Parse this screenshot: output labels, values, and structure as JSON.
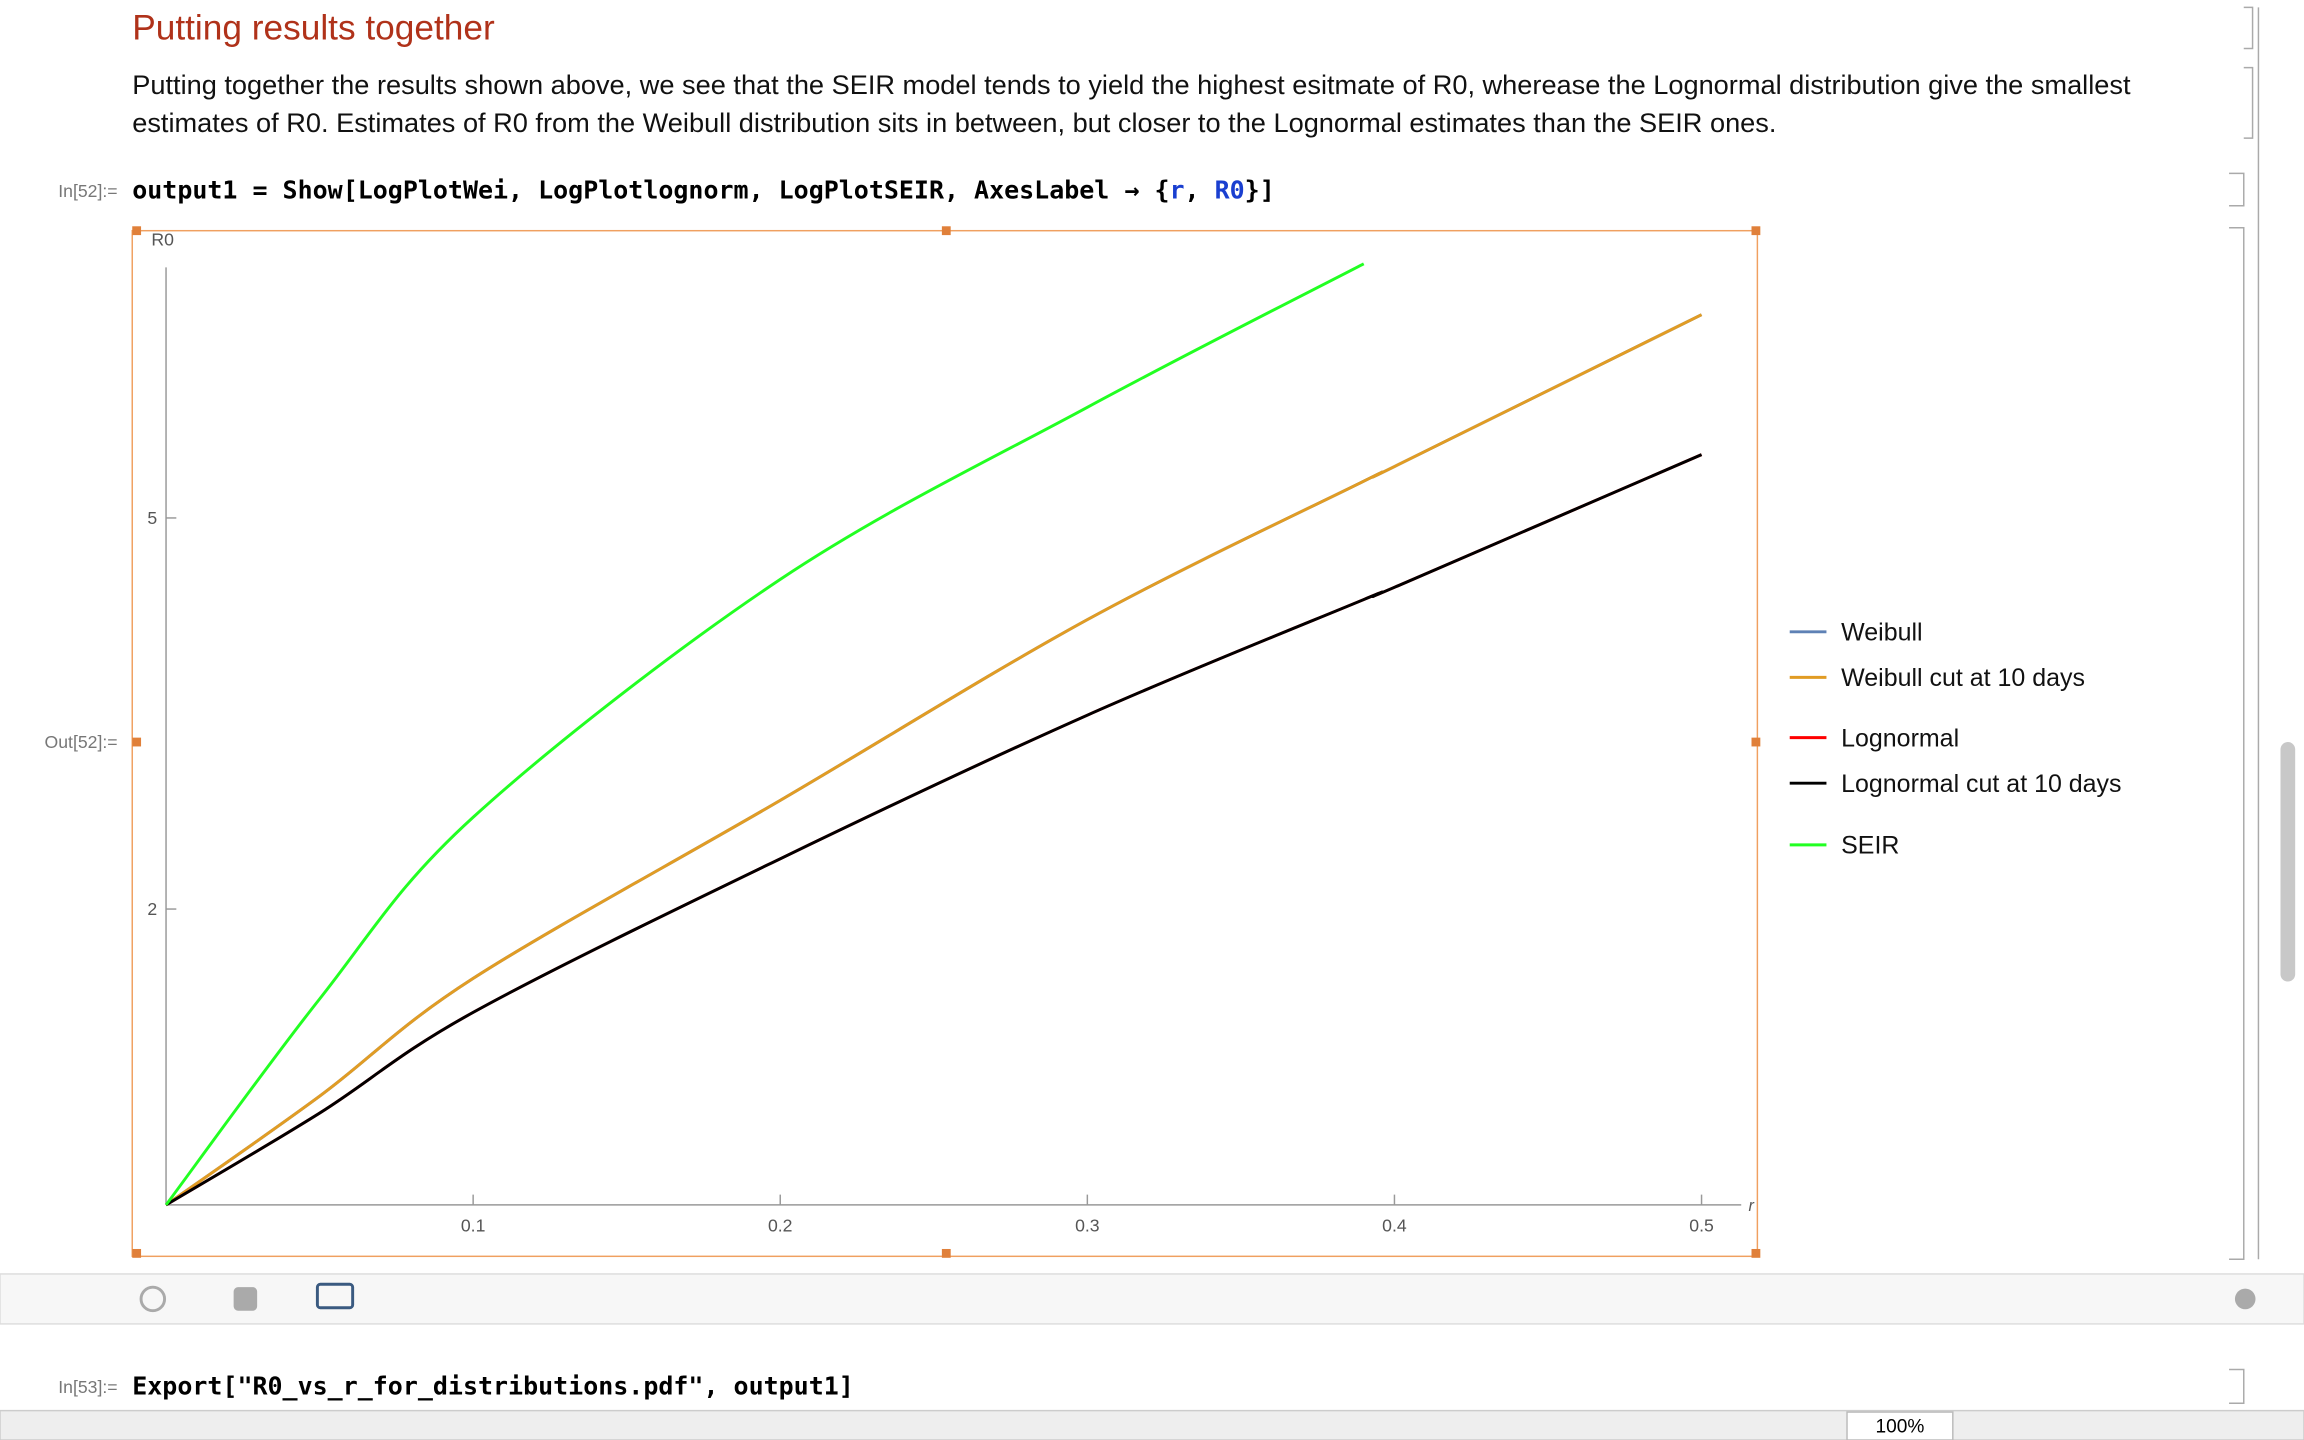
{
  "header": {
    "title": "Putting results together"
  },
  "paragraph": [
    "Putting together the results shown above, we see that the SEIR model tends to yield the highest esitmate of R0, wherease the Lognormal distribution give the smallest",
    "estimates of R0. Estimates of R0 from the Weibull distribution sits in between, but closer to the Lognormal estimates than the SEIR ones."
  ],
  "cell1": {
    "in_label": "In[52]:=",
    "code": [
      "output1 = Show[LogPlotWei, LogPlotlognorm, LogPlotSEIR, AxesLabel → {",
      "r",
      ", ",
      "R0",
      "}]"
    ],
    "out_label": "Out[52]:="
  },
  "cell2": {
    "in_label": "In[53]:=",
    "code": "Export[\"R0_vs_r_for_distributions.pdf\", output1]"
  },
  "status": {
    "zoom": "100%"
  },
  "chart_data": {
    "type": "line",
    "x_label": "r",
    "y_label": "R0",
    "log_y": true,
    "x": [
      0,
      0.05,
      0.1,
      0.2,
      0.3,
      0.39,
      0.4,
      0.5
    ],
    "xlim": [
      0,
      0.513
    ],
    "ylim": [
      1,
      9.7
    ],
    "xticks": [
      0.1,
      0.2,
      0.3,
      0.4,
      0.5
    ],
    "yticks": [
      2,
      5
    ],
    "legend": "right",
    "series": [
      {
        "name": "Weibull",
        "color": "#5e81b5",
        "values": [
          1,
          1.29,
          1.7,
          2.58,
          3.94,
          5.45,
          5.64,
          8.05
        ]
      },
      {
        "name": "Weibull cut at 10 days",
        "color": "#e19c24",
        "values": [
          1,
          1.29,
          1.7,
          2.58,
          3.94,
          5.45,
          5.64,
          8.05
        ]
      },
      {
        "name": "Lognormal",
        "color": "#ff0000",
        "values": [
          1,
          1.24,
          1.57,
          2.25,
          3.15,
          4.13,
          4.25,
          5.8
        ]
      },
      {
        "name": "Lognormal cut at 10 days",
        "color": "#000000",
        "values": [
          1,
          1.24,
          1.57,
          2.25,
          3.15,
          4.13,
          4.25,
          5.8
        ]
      },
      {
        "name": "SEIR",
        "color": "#22ff22",
        "values": [
          1,
          1.62,
          2.48,
          4.33,
          6.48,
          9.07,
          null,
          null
        ]
      }
    ]
  }
}
